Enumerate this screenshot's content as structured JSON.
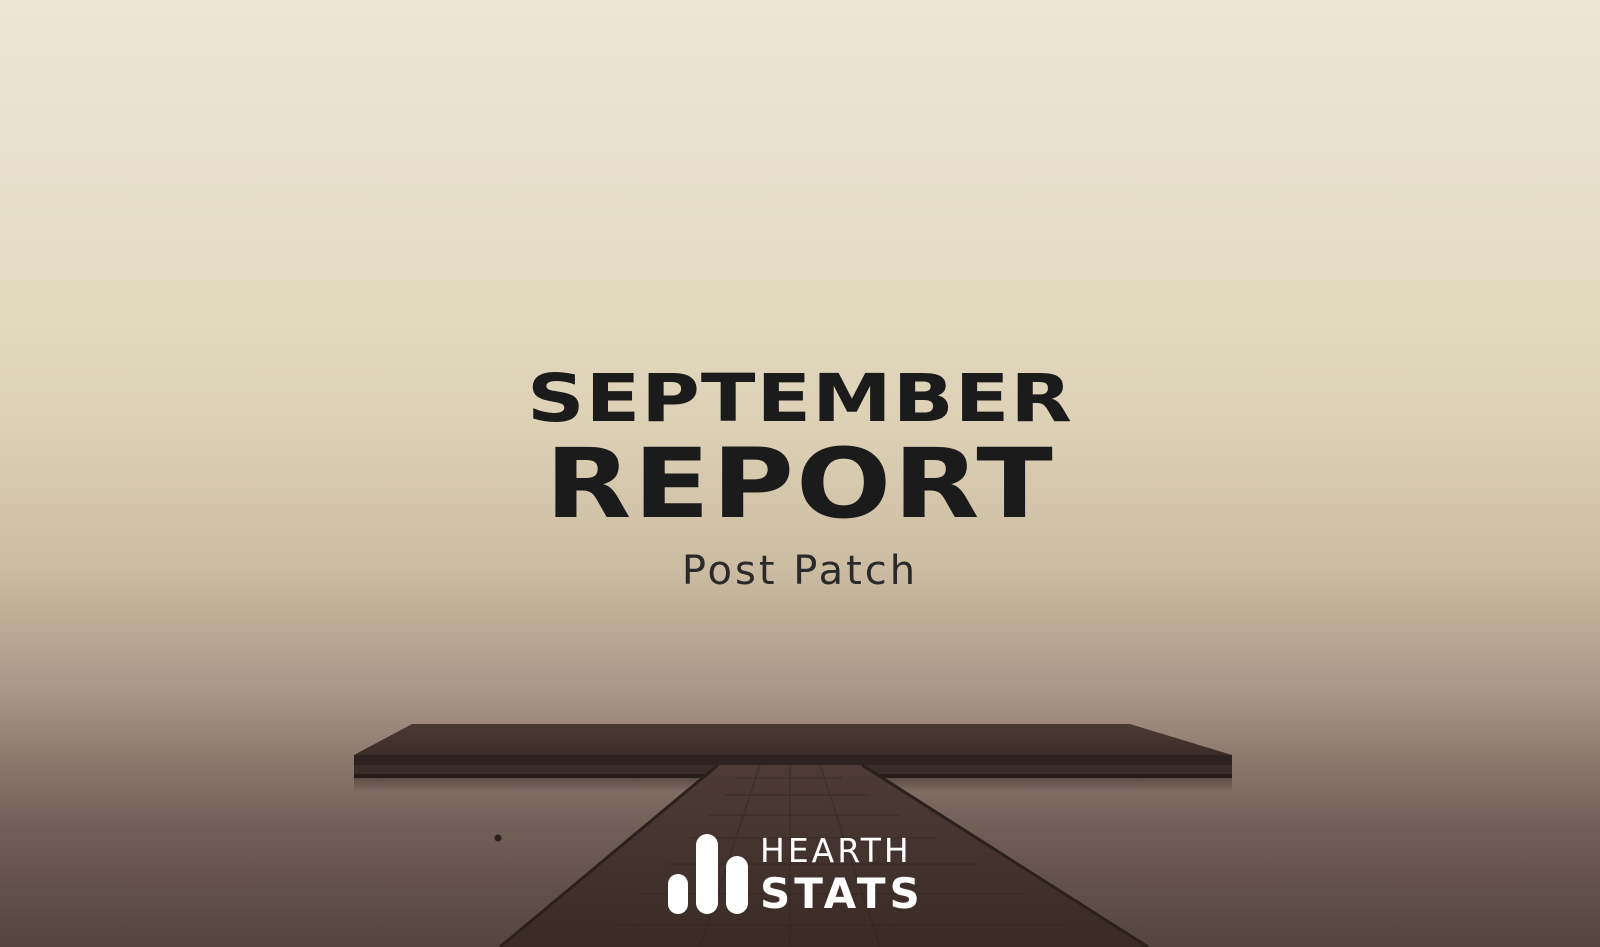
{
  "banner": {
    "title_line1": "SEPTEMBER",
    "title_line2": "REPORT",
    "subtitle": "Post Patch"
  },
  "logo": {
    "line1": "HEARTH",
    "line2": "STATS",
    "mark_icon": "bar-chart-mark-icon",
    "color": "#ffffff"
  },
  "colors": {
    "title": "#1b1b1b",
    "sky_top": "#ece6d2",
    "water_bottom": "#54443f",
    "pier": "#3e2f2b"
  }
}
